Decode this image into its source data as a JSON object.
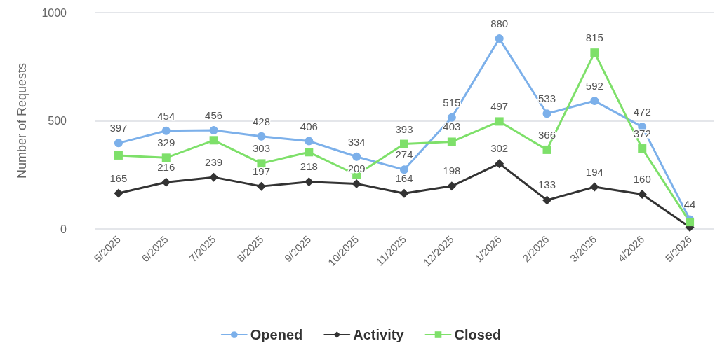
{
  "chart_data": {
    "type": "line",
    "ylabel": "Number of Requests",
    "categories": [
      "5/2025",
      "6/2025",
      "7/2025",
      "8/2025",
      "9/2025",
      "10/2025",
      "11/2025",
      "12/2025",
      "1/2026",
      "2/2026",
      "3/2026",
      "4/2026",
      "5/2026"
    ],
    "series": [
      {
        "name": "Opened",
        "color": "#7cb0ea",
        "marker": "circle",
        "values": [
          397,
          454,
          456,
          428,
          406,
          334,
          274,
          515,
          880,
          533,
          592,
          472,
          44
        ],
        "value_labels": [
          "397",
          "454",
          "456",
          "428",
          "406",
          "334",
          "274",
          "515",
          "880",
          "533",
          "592",
          "472",
          "44"
        ]
      },
      {
        "name": "Activity",
        "color": "#333333",
        "marker": "diamond",
        "values": [
          165,
          216,
          239,
          197,
          218,
          209,
          164,
          198,
          302,
          133,
          194,
          160,
          8
        ],
        "value_labels": [
          "165",
          "216",
          "239",
          "197",
          "218",
          "209",
          "164",
          "198",
          "302",
          "133",
          "194",
          "160",
          null
        ]
      },
      {
        "name": "Closed",
        "color": "#7ee06a",
        "marker": "square",
        "values": [
          340,
          329,
          410,
          303,
          355,
          250,
          393,
          403,
          497,
          366,
          815,
          372,
          32
        ],
        "value_labels": [
          null,
          "329",
          null,
          "303",
          null,
          null,
          "393",
          "403",
          "497",
          "366",
          "815",
          "372",
          null
        ]
      }
    ],
    "ylim": [
      0,
      1000
    ],
    "yticks": [
      0,
      500,
      1000
    ],
    "grid": "y",
    "legend": "bottom"
  }
}
